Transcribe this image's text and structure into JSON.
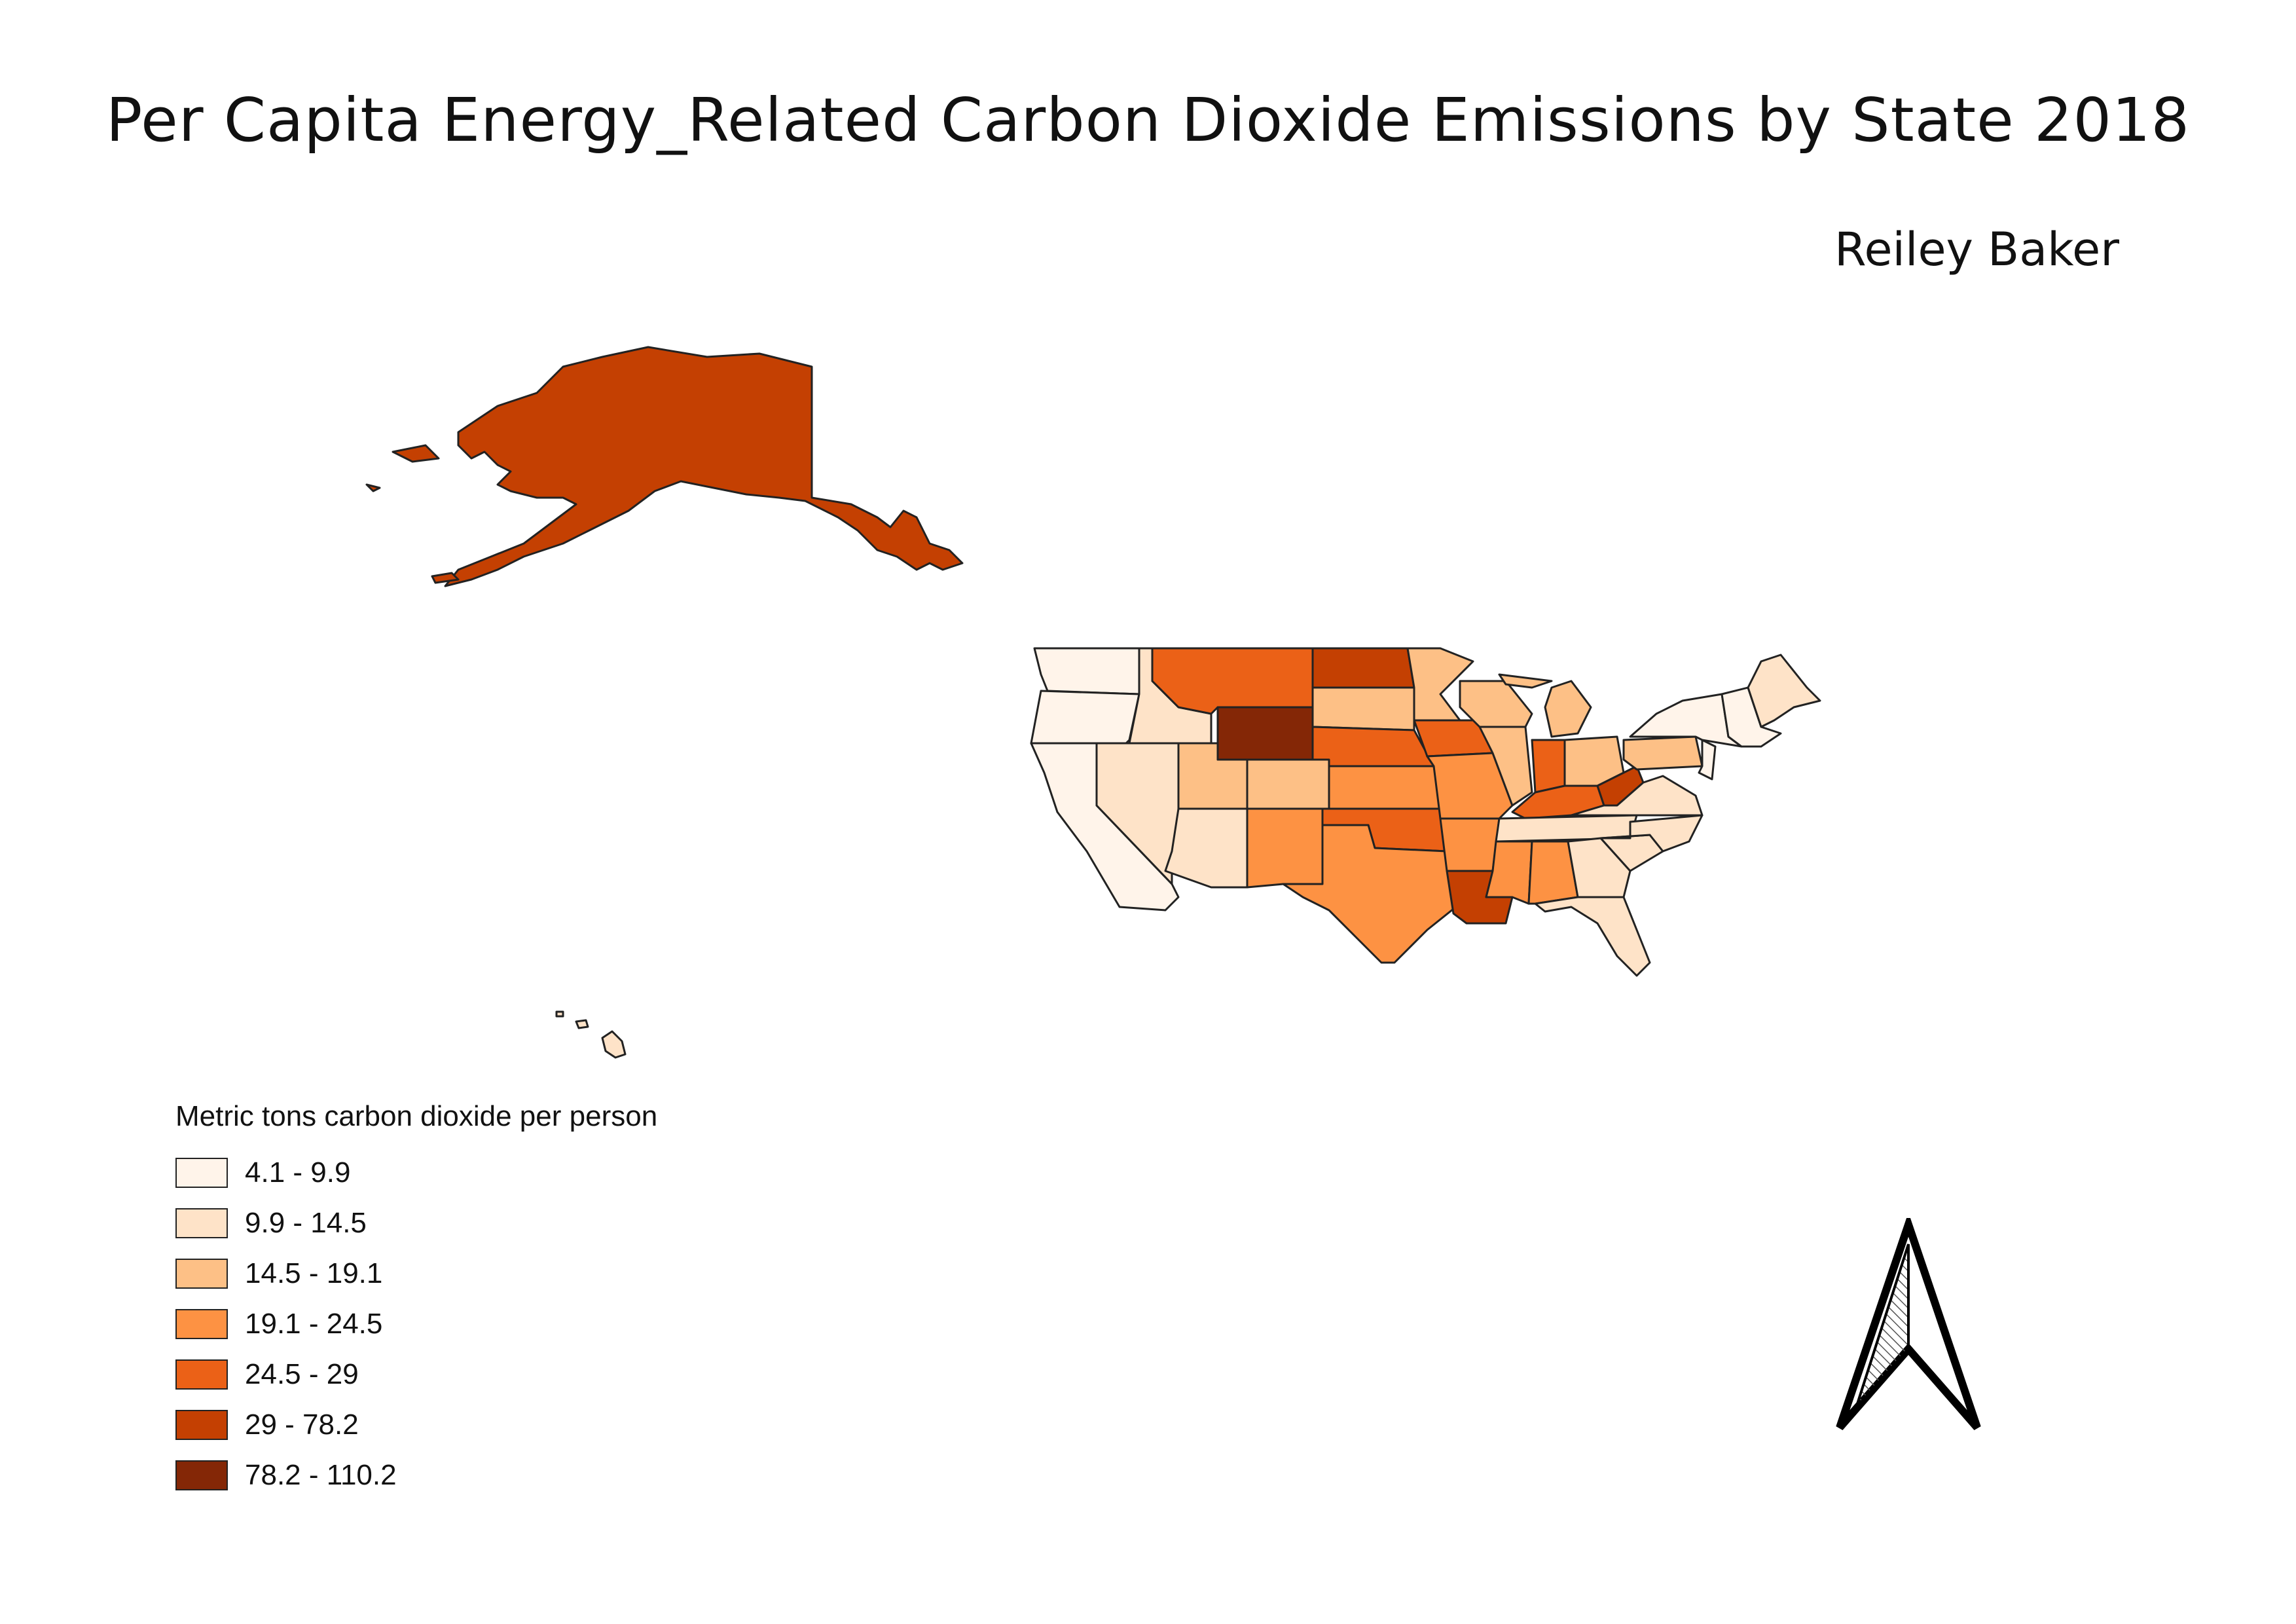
{
  "title": "Per Capita Energy_Related Carbon Dioxide Emissions by State 2018",
  "author": "Reiley Baker",
  "legend": {
    "title": "Metric tons carbon dioxide per person",
    "classes": [
      {
        "label": "4.1 - 9.9",
        "color": "#fff4ea"
      },
      {
        "label": "9.9 - 14.5",
        "color": "#fee3c8"
      },
      {
        "label": "14.5 - 19.1",
        "color": "#fdc086"
      },
      {
        "label": "19.1 - 24.5",
        "color": "#fd9243"
      },
      {
        "label": "24.5 - 29",
        "color": "#eb6117"
      },
      {
        "label": "29 - 78.2",
        "color": "#c44002"
      },
      {
        "label": "78.2 - 110.2",
        "color": "#842706"
      }
    ]
  },
  "map": {
    "states": [
      {
        "name": "Alaska",
        "class": 5
      },
      {
        "name": "Hawaii",
        "class": 1
      },
      {
        "name": "Washington",
        "class": 0
      },
      {
        "name": "Oregon",
        "class": 0
      },
      {
        "name": "California",
        "class": 0
      },
      {
        "name": "Idaho",
        "class": 1
      },
      {
        "name": "Nevada",
        "class": 1
      },
      {
        "name": "Utah",
        "class": 2
      },
      {
        "name": "Arizona",
        "class": 1
      },
      {
        "name": "Montana",
        "class": 4
      },
      {
        "name": "Wyoming",
        "class": 6
      },
      {
        "name": "Colorado",
        "class": 2
      },
      {
        "name": "New Mexico",
        "class": 3
      },
      {
        "name": "North Dakota",
        "class": 5
      },
      {
        "name": "South Dakota",
        "class": 2
      },
      {
        "name": "Nebraska",
        "class": 4
      },
      {
        "name": "Kansas",
        "class": 3
      },
      {
        "name": "Oklahoma",
        "class": 4
      },
      {
        "name": "Texas",
        "class": 3
      },
      {
        "name": "Minnesota",
        "class": 2
      },
      {
        "name": "Iowa",
        "class": 4
      },
      {
        "name": "Missouri",
        "class": 3
      },
      {
        "name": "Arkansas",
        "class": 3
      },
      {
        "name": "Louisiana",
        "class": 5
      },
      {
        "name": "Wisconsin",
        "class": 2
      },
      {
        "name": "Illinois",
        "class": 2
      },
      {
        "name": "Michigan",
        "class": 2
      },
      {
        "name": "Indiana",
        "class": 4
      },
      {
        "name": "Ohio",
        "class": 2
      },
      {
        "name": "Kentucky",
        "class": 4
      },
      {
        "name": "Tennessee",
        "class": 1
      },
      {
        "name": "Mississippi",
        "class": 3
      },
      {
        "name": "Alabama",
        "class": 3
      },
      {
        "name": "Georgia",
        "class": 1
      },
      {
        "name": "Florida",
        "class": 1
      },
      {
        "name": "South Carolina",
        "class": 1
      },
      {
        "name": "North Carolina",
        "class": 1
      },
      {
        "name": "Virginia",
        "class": 1
      },
      {
        "name": "West Virginia",
        "class": 5
      },
      {
        "name": "Pennsylvania",
        "class": 2
      },
      {
        "name": "New York",
        "class": 0
      },
      {
        "name": "New England",
        "class": 0
      },
      {
        "name": "Maine",
        "class": 1
      }
    ]
  },
  "north_arrow": {
    "icon": "north-arrow-icon"
  }
}
